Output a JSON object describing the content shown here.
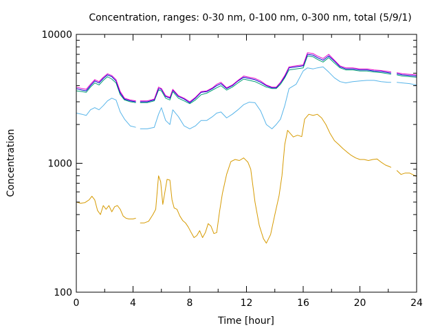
{
  "chart_data": {
    "type": "line",
    "title": "Concentration, ranges: 0-30 nm, 0-100 nm, 0-300 nm, total (5/9/1)",
    "xlabel": "Time [hour]",
    "ylabel": "Concentration",
    "xlim": [
      0,
      24
    ],
    "ylim": [
      100,
      10000
    ],
    "yscale": "log",
    "grid": false,
    "legend": "none",
    "x_ticks": [
      0,
      4,
      8,
      12,
      16,
      20,
      24
    ],
    "x_tick_labels": [
      "0",
      "4",
      "8",
      "12",
      "16",
      "20",
      "24"
    ],
    "y_ticks": [
      100,
      1000,
      10000
    ],
    "y_tick_labels": [
      "100",
      "1000",
      "10000"
    ],
    "series": [
      {
        "color": "#d69a00",
        "gaps_after": [
          4.2,
          22.2
        ],
        "x": [
          0,
          0.3,
          0.6,
          0.9,
          1.1,
          1.3,
          1.5,
          1.7,
          1.9,
          2.1,
          2.3,
          2.5,
          2.7,
          2.9,
          3.1,
          3.3,
          3.5,
          3.7,
          4.0,
          4.2,
          4.5,
          4.8,
          5.1,
          5.4,
          5.6,
          5.8,
          5.95,
          6.1,
          6.25,
          6.4,
          6.6,
          6.75,
          6.9,
          7.1,
          7.3,
          7.5,
          7.7,
          7.9,
          8.1,
          8.3,
          8.5,
          8.7,
          8.9,
          9.1,
          9.3,
          9.5,
          9.7,
          9.9,
          10.1,
          10.3,
          10.6,
          10.9,
          11.2,
          11.5,
          11.8,
          12.1,
          12.3,
          12.6,
          12.9,
          13.2,
          13.4,
          13.7,
          14.0,
          14.3,
          14.5,
          14.7,
          14.9,
          15.1,
          15.3,
          15.6,
          15.9,
          16.1,
          16.4,
          16.7,
          17.0,
          17.3,
          17.6,
          17.9,
          18.2,
          18.5,
          18.8,
          19.1,
          19.4,
          19.7,
          20.0,
          20.3,
          20.6,
          20.9,
          21.2,
          21.5,
          21.8,
          22.1,
          22.2,
          22.6,
          22.9,
          23.2,
          23.5,
          23.8,
          24.0
        ],
        "y": [
          500,
          490,
          495,
          520,
          555,
          520,
          430,
          400,
          470,
          440,
          470,
          420,
          460,
          470,
          440,
          390,
          375,
          370,
          370,
          375,
          345,
          345,
          355,
          400,
          440,
          800,
          720,
          480,
          600,
          750,
          740,
          520,
          450,
          440,
          390,
          360,
          345,
          320,
          290,
          265,
          275,
          300,
          265,
          290,
          340,
          325,
          285,
          290,
          420,
          580,
          820,
          1030,
          1070,
          1050,
          1100,
          1020,
          900,
          500,
          330,
          260,
          240,
          280,
          400,
          560,
          800,
          1400,
          1800,
          1700,
          1600,
          1650,
          1610,
          2200,
          2400,
          2350,
          2400,
          2250,
          2000,
          1700,
          1500,
          1400,
          1300,
          1220,
          1150,
          1100,
          1070,
          1070,
          1050,
          1070,
          1080,
          1020,
          970,
          940,
          930,
          880,
          820,
          840,
          840,
          810,
          790
        ]
      },
      {
        "color": "#56b4e9",
        "gaps_after": [
          4.2,
          22.2
        ],
        "x": [
          0,
          0.4,
          0.7,
          1.0,
          1.3,
          1.6,
          1.9,
          2.2,
          2.5,
          2.8,
          3.1,
          3.4,
          3.8,
          4.2,
          4.5,
          5.0,
          5.5,
          5.8,
          6.0,
          6.3,
          6.6,
          6.8,
          7.2,
          7.6,
          8.0,
          8.4,
          8.8,
          9.2,
          9.6,
          9.9,
          10.2,
          10.6,
          11.0,
          11.4,
          11.8,
          12.2,
          12.6,
          13.0,
          13.4,
          13.8,
          14.1,
          14.4,
          14.7,
          15.0,
          15.5,
          16.0,
          16.3,
          16.7,
          17.0,
          17.4,
          17.8,
          18.2,
          18.6,
          19.0,
          19.5,
          20.0,
          20.5,
          21.0,
          21.5,
          22.0,
          22.2,
          22.6,
          23.0,
          23.5,
          24.0
        ],
        "y": [
          2450,
          2400,
          2350,
          2600,
          2700,
          2600,
          2800,
          3050,
          3200,
          3100,
          2500,
          2200,
          1950,
          1900,
          1850,
          1850,
          1900,
          2400,
          2700,
          2150,
          2000,
          2600,
          2300,
          1950,
          1850,
          1950,
          2150,
          2150,
          2300,
          2450,
          2500,
          2250,
          2400,
          2600,
          2850,
          2980,
          2950,
          2550,
          2000,
          1850,
          2000,
          2200,
          2800,
          3800,
          4100,
          5200,
          5500,
          5400,
          5500,
          5600,
          5100,
          4600,
          4300,
          4200,
          4300,
          4350,
          4400,
          4400,
          4300,
          4250,
          4250,
          4250,
          4200,
          4150,
          4050
        ]
      },
      {
        "color": "#009e73",
        "gaps_after": [
          4.2,
          22.2
        ],
        "x": [
          0,
          0.4,
          0.7,
          1.0,
          1.3,
          1.6,
          1.9,
          2.2,
          2.5,
          2.8,
          3.1,
          3.4,
          3.8,
          4.2,
          4.5,
          5.0,
          5.5,
          5.8,
          6.0,
          6.3,
          6.6,
          6.8,
          7.2,
          7.6,
          8.0,
          8.4,
          8.8,
          9.2,
          9.6,
          9.9,
          10.2,
          10.6,
          11.0,
          11.4,
          11.8,
          12.2,
          12.6,
          13.0,
          13.4,
          13.8,
          14.1,
          14.4,
          14.7,
          15.0,
          15.5,
          16.0,
          16.3,
          16.7,
          17.0,
          17.4,
          17.8,
          18.2,
          18.6,
          19.0,
          19.5,
          20.0,
          20.5,
          21.0,
          21.5,
          22.0,
          22.2,
          22.6,
          23.0,
          23.5,
          24.0
        ],
        "y": [
          3650,
          3600,
          3550,
          3900,
          4200,
          4050,
          4400,
          4700,
          4500,
          4200,
          3400,
          3100,
          3000,
          2950,
          2950,
          2950,
          3050,
          3700,
          3650,
          3200,
          3100,
          3600,
          3200,
          3050,
          2900,
          3100,
          3400,
          3500,
          3700,
          3850,
          4000,
          3700,
          3900,
          4200,
          4500,
          4400,
          4300,
          4100,
          3900,
          3800,
          3800,
          4100,
          4600,
          5300,
          5400,
          5500,
          6800,
          6700,
          6400,
          6100,
          6600,
          6000,
          5500,
          5300,
          5300,
          5200,
          5200,
          5100,
          5050,
          4950,
          4900,
          4850,
          4750,
          4700,
          4650
        ]
      },
      {
        "color": "#0000cc",
        "gaps_after": [
          4.2,
          22.2
        ],
        "x": [
          0,
          0.4,
          0.7,
          1.0,
          1.3,
          1.6,
          1.9,
          2.2,
          2.5,
          2.8,
          3.1,
          3.4,
          3.8,
          4.2,
          4.5,
          5.0,
          5.5,
          5.8,
          6.0,
          6.3,
          6.6,
          6.8,
          7.2,
          7.6,
          8.0,
          8.4,
          8.8,
          9.2,
          9.6,
          9.9,
          10.2,
          10.6,
          11.0,
          11.4,
          11.8,
          12.2,
          12.6,
          13.0,
          13.4,
          13.8,
          14.1,
          14.4,
          14.7,
          15.0,
          15.5,
          16.0,
          16.3,
          16.7,
          17.0,
          17.4,
          17.8,
          18.2,
          18.6,
          19.0,
          19.5,
          20.0,
          20.5,
          21.0,
          21.5,
          22.0,
          22.2,
          22.6,
          23.0,
          23.5,
          24.0
        ],
        "y": [
          3800,
          3700,
          3650,
          4000,
          4350,
          4200,
          4550,
          4850,
          4700,
          4350,
          3500,
          3150,
          3050,
          3000,
          3000,
          3000,
          3100,
          3800,
          3750,
          3300,
          3200,
          3700,
          3300,
          3150,
          2950,
          3200,
          3550,
          3600,
          3800,
          4000,
          4150,
          3800,
          4000,
          4350,
          4650,
          4550,
          4450,
          4250,
          4000,
          3850,
          3850,
          4200,
          4700,
          5500,
          5600,
          5700,
          7000,
          6900,
          6600,
          6300,
          6800,
          6200,
          5600,
          5400,
          5400,
          5300,
          5300,
          5200,
          5150,
          5050,
          5000,
          4950,
          4850,
          4800,
          4750
        ]
      },
      {
        "color": "#e600c8",
        "gaps_after": [
          4.2,
          22.2
        ],
        "x": [
          0,
          0.4,
          0.7,
          1.0,
          1.3,
          1.6,
          1.9,
          2.2,
          2.5,
          2.8,
          3.1,
          3.4,
          3.8,
          4.2,
          4.5,
          5.0,
          5.5,
          5.8,
          6.0,
          6.3,
          6.6,
          6.8,
          7.2,
          7.6,
          8.0,
          8.4,
          8.8,
          9.2,
          9.6,
          9.9,
          10.2,
          10.6,
          11.0,
          11.4,
          11.8,
          12.2,
          12.6,
          13.0,
          13.4,
          13.8,
          14.1,
          14.4,
          14.7,
          15.0,
          15.5,
          16.0,
          16.3,
          16.7,
          17.0,
          17.4,
          17.8,
          18.2,
          18.6,
          19.0,
          19.5,
          20.0,
          20.5,
          21.0,
          21.5,
          22.0,
          22.2,
          22.6,
          23.0,
          23.5,
          24.0
        ],
        "y": [
          3900,
          3800,
          3750,
          4100,
          4450,
          4300,
          4650,
          4950,
          4800,
          4450,
          3600,
          3200,
          3100,
          3050,
          3050,
          3050,
          3150,
          3900,
          3800,
          3350,
          3250,
          3750,
          3350,
          3200,
          3000,
          3250,
          3600,
          3650,
          3850,
          4100,
          4250,
          3850,
          4050,
          4400,
          4750,
          4650,
          4550,
          4350,
          4050,
          3900,
          3900,
          4250,
          4800,
          5600,
          5700,
          5800,
          7200,
          7100,
          6800,
          6500,
          7000,
          6300,
          5700,
          5500,
          5500,
          5400,
          5400,
          5300,
          5250,
          5150,
          5100,
          5050,
          4950,
          4900,
          4850
        ]
      }
    ]
  }
}
